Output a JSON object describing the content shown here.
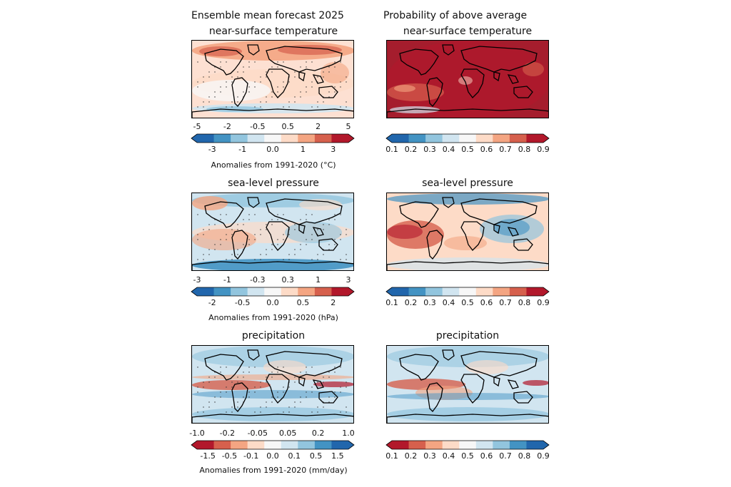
{
  "headers": {
    "left": "Ensemble mean forecast 2025",
    "right": "Probability of above average"
  },
  "panels": {
    "ens_temp": {
      "title": "near-surface temperature",
      "top_ticks": [
        "-5",
        "-2",
        "-0.5",
        "0.5",
        "2",
        "5"
      ],
      "bottom_ticks": [
        "-3",
        "-1",
        "0.0",
        "1",
        "3"
      ],
      "unit_label": "Anomalies from 1991-2020 (°C)"
    },
    "prob_temp": {
      "title": "near-surface temperature",
      "ticks": [
        "0.1",
        "0.2",
        "0.3",
        "0.4",
        "0.5",
        "0.6",
        "0.7",
        "0.8",
        "0.9"
      ]
    },
    "ens_slp": {
      "title": "sea-level pressure",
      "top_ticks": [
        "-3",
        "-1",
        "-0.3",
        "0.3",
        "1",
        "3"
      ],
      "bottom_ticks": [
        "-2",
        "-0.5",
        "0.0",
        "0.5",
        "2"
      ],
      "unit_label": "Anomalies from 1991-2020 (hPa)"
    },
    "prob_slp": {
      "title": "sea-level pressure",
      "ticks": [
        "0.1",
        "0.2",
        "0.3",
        "0.4",
        "0.5",
        "0.6",
        "0.7",
        "0.8",
        "0.9"
      ]
    },
    "ens_precip": {
      "title": "precipitation",
      "top_ticks": [
        "-1.0",
        "-0.2",
        "-0.05",
        "0.05",
        "0.2",
        "1.0"
      ],
      "bottom_ticks": [
        "-1.5",
        "-0.5",
        "-0.1",
        "0.0",
        "0.1",
        "0.5",
        "1.5"
      ],
      "unit_label": "Anomalies from 1991-2020 (mm/day)"
    },
    "prob_precip": {
      "title": "precipitation",
      "ticks": [
        "0.1",
        "0.2",
        "0.3",
        "0.4",
        "0.5",
        "0.6",
        "0.7",
        "0.8",
        "0.9"
      ]
    }
  },
  "colors": {
    "red_blue_scale": [
      "#2166ac",
      "#4393c3",
      "#92c5de",
      "#d1e5f0",
      "#fddbc7",
      "#f4a582",
      "#d6604d",
      "#b2182b"
    ],
    "blue_red_scale": [
      "#b2182b",
      "#d6604d",
      "#f4a582",
      "#fddbc7",
      "#d1e5f0",
      "#92c5de",
      "#4393c3",
      "#2166ac"
    ]
  }
}
